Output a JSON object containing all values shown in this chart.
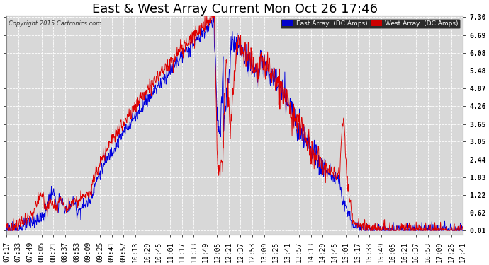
{
  "title": "East & West Array Current Mon Oct 26 17:46",
  "copyright": "Copyright 2015 Cartronics.com",
  "east_label": "East Array  (DC Amps)",
  "west_label": "West Array  (DC Amps)",
  "east_color": "#0000dd",
  "west_color": "#dd0000",
  "legend_bg": "#000000",
  "legend_east_bg": "#0000cc",
  "legend_west_bg": "#cc0000",
  "yticks": [
    0.01,
    0.62,
    1.22,
    1.83,
    2.44,
    3.05,
    3.65,
    4.26,
    4.87,
    5.48,
    6.08,
    6.69,
    7.3
  ],
  "ymin": 0.01,
  "ymax": 7.3,
  "background_color": "#ffffff",
  "plot_bg_color": "#d8d8d8",
  "grid_color": "#ffffff",
  "title_fontsize": 13,
  "tick_fontsize": 7,
  "xtick_labels": [
    "07:17",
    "07:33",
    "07:49",
    "08:05",
    "08:21",
    "08:37",
    "08:53",
    "09:09",
    "09:25",
    "09:41",
    "09:57",
    "10:13",
    "10:29",
    "10:45",
    "11:01",
    "11:17",
    "11:33",
    "11:49",
    "12:05",
    "12:21",
    "12:37",
    "12:53",
    "13:09",
    "13:25",
    "13:41",
    "13:57",
    "14:13",
    "14:29",
    "14:45",
    "15:01",
    "15:17",
    "15:33",
    "15:49",
    "16:05",
    "16:21",
    "16:37",
    "16:53",
    "17:09",
    "17:25",
    "17:41"
  ]
}
